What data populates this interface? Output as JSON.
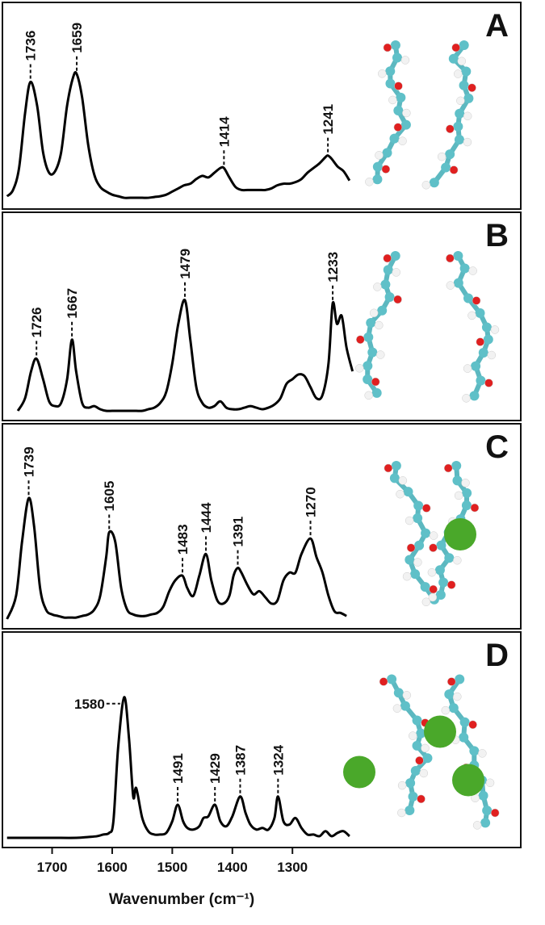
{
  "chart_data": [
    {
      "type": "line",
      "label": "A",
      "xlim": [
        1780,
        920
      ],
      "ylim": [
        0,
        1
      ],
      "x": [
        1775,
        1765,
        1755,
        1745,
        1736,
        1725,
        1715,
        1705,
        1695,
        1685,
        1675,
        1665,
        1659,
        1650,
        1640,
        1630,
        1620,
        1610,
        1600,
        1590,
        1580,
        1570,
        1560,
        1550,
        1540,
        1530,
        1520,
        1510,
        1500,
        1490,
        1480,
        1470,
        1460,
        1450,
        1440,
        1430,
        1420,
        1414,
        1405,
        1395,
        1385,
        1375,
        1365,
        1355,
        1345,
        1335,
        1325,
        1315,
        1305,
        1295,
        1285,
        1275,
        1265,
        1255,
        1245,
        1241,
        1235,
        1225,
        1215,
        1205
      ],
      "values": [
        0.02,
        0.06,
        0.2,
        0.55,
        0.75,
        0.6,
        0.3,
        0.17,
        0.18,
        0.3,
        0.6,
        0.78,
        0.8,
        0.65,
        0.35,
        0.16,
        0.08,
        0.05,
        0.03,
        0.02,
        0.01,
        0.01,
        0.01,
        0.01,
        0.01,
        0.015,
        0.02,
        0.03,
        0.05,
        0.07,
        0.09,
        0.1,
        0.13,
        0.15,
        0.14,
        0.17,
        0.2,
        0.2,
        0.14,
        0.08,
        0.06,
        0.06,
        0.06,
        0.06,
        0.06,
        0.07,
        0.09,
        0.1,
        0.1,
        0.11,
        0.13,
        0.17,
        0.2,
        0.23,
        0.27,
        0.28,
        0.26,
        0.21,
        0.18,
        0.12
      ],
      "peaks": [
        1736,
        1659,
        1414,
        1241
      ]
    },
    {
      "type": "line",
      "label": "B",
      "xlim": [
        1780,
        920
      ],
      "ylim": [
        0,
        1
      ],
      "x": [
        1757,
        1745,
        1735,
        1726,
        1715,
        1705,
        1695,
        1685,
        1675,
        1667,
        1660,
        1650,
        1640,
        1630,
        1620,
        1610,
        1600,
        1590,
        1580,
        1570,
        1560,
        1550,
        1540,
        1530,
        1520,
        1510,
        1500,
        1490,
        1479,
        1470,
        1460,
        1450,
        1440,
        1430,
        1420,
        1410,
        1400,
        1390,
        1380,
        1370,
        1360,
        1350,
        1340,
        1330,
        1320,
        1310,
        1300,
        1290,
        1280,
        1270,
        1260,
        1250,
        1240,
        1233,
        1226,
        1218,
        1210,
        1200
      ],
      "values": [
        0.0,
        0.08,
        0.25,
        0.33,
        0.2,
        0.06,
        0.03,
        0.05,
        0.2,
        0.45,
        0.25,
        0.05,
        0.02,
        0.03,
        0.01,
        0.0,
        0.0,
        0.0,
        0.0,
        0.0,
        0.0,
        0.0,
        0.01,
        0.02,
        0.05,
        0.12,
        0.3,
        0.55,
        0.7,
        0.45,
        0.15,
        0.05,
        0.02,
        0.03,
        0.06,
        0.02,
        0.01,
        0.01,
        0.02,
        0.03,
        0.02,
        0.01,
        0.02,
        0.04,
        0.08,
        0.17,
        0.2,
        0.23,
        0.22,
        0.15,
        0.08,
        0.1,
        0.3,
        0.68,
        0.55,
        0.6,
        0.4,
        0.25
      ],
      "peaks": [
        1726,
        1667,
        1479,
        1233
      ]
    },
    {
      "type": "line",
      "label": "C",
      "xlim": [
        1780,
        920
      ],
      "ylim": [
        0,
        1
      ],
      "x": [
        1775,
        1760,
        1750,
        1739,
        1730,
        1720,
        1710,
        1700,
        1690,
        1680,
        1670,
        1660,
        1650,
        1640,
        1630,
        1620,
        1610,
        1605,
        1595,
        1585,
        1575,
        1565,
        1555,
        1545,
        1535,
        1525,
        1515,
        1505,
        1495,
        1483,
        1475,
        1465,
        1455,
        1444,
        1435,
        1425,
        1415,
        1405,
        1398,
        1391,
        1385,
        1375,
        1365,
        1355,
        1345,
        1335,
        1325,
        1315,
        1305,
        1295,
        1285,
        1270,
        1260,
        1250,
        1240,
        1230,
        1220,
        1210
      ],
      "values": [
        0.0,
        0.15,
        0.5,
        0.78,
        0.6,
        0.2,
        0.06,
        0.03,
        0.02,
        0.01,
        0.01,
        0.01,
        0.02,
        0.03,
        0.06,
        0.15,
        0.4,
        0.56,
        0.5,
        0.2,
        0.06,
        0.03,
        0.02,
        0.02,
        0.03,
        0.04,
        0.08,
        0.18,
        0.25,
        0.28,
        0.2,
        0.15,
        0.28,
        0.42,
        0.25,
        0.12,
        0.1,
        0.15,
        0.28,
        0.33,
        0.3,
        0.22,
        0.16,
        0.18,
        0.14,
        0.1,
        0.12,
        0.25,
        0.3,
        0.3,
        0.42,
        0.52,
        0.4,
        0.3,
        0.15,
        0.05,
        0.04,
        0.02
      ],
      "peaks": [
        1739,
        1605,
        1483,
        1444,
        1391,
        1270
      ]
    },
    {
      "type": "line",
      "label": "D",
      "xlim": [
        1780,
        920
      ],
      "ylim": [
        0,
        1
      ],
      "x": [
        1775,
        1740,
        1700,
        1660,
        1640,
        1625,
        1615,
        1605,
        1598,
        1590,
        1580,
        1572,
        1565,
        1560,
        1550,
        1540,
        1530,
        1520,
        1510,
        1500,
        1491,
        1482,
        1475,
        1465,
        1455,
        1448,
        1440,
        1429,
        1420,
        1410,
        1400,
        1387,
        1378,
        1370,
        1360,
        1350,
        1340,
        1330,
        1324,
        1315,
        1305,
        1295,
        1285,
        1275,
        1265,
        1255,
        1245,
        1235,
        1225,
        1215,
        1205
      ],
      "values": [
        0.0,
        0.0,
        0.0,
        0.0,
        0.005,
        0.01,
        0.02,
        0.03,
        0.1,
        0.55,
        0.85,
        0.6,
        0.25,
        0.3,
        0.12,
        0.04,
        0.02,
        0.02,
        0.03,
        0.1,
        0.2,
        0.1,
        0.06,
        0.05,
        0.07,
        0.12,
        0.13,
        0.2,
        0.1,
        0.07,
        0.13,
        0.25,
        0.15,
        0.08,
        0.05,
        0.06,
        0.05,
        0.12,
        0.25,
        0.1,
        0.08,
        0.12,
        0.06,
        0.02,
        0.02,
        0.01,
        0.04,
        0.01,
        0.03,
        0.04,
        0.01
      ],
      "peaks": [
        1580,
        1491,
        1429,
        1387,
        1324
      ],
      "xticks": [
        1700,
        1600,
        1500,
        1400,
        1300
      ],
      "xlabel": "Wavenumber (cm⁻¹)"
    }
  ]
}
